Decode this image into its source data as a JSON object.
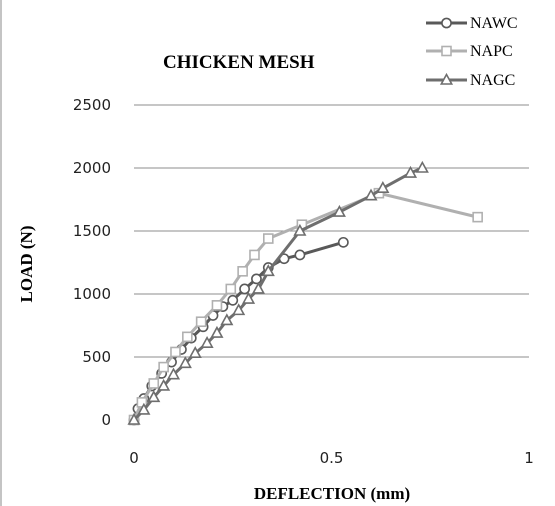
{
  "chart_data": {
    "type": "line",
    "title": "CHICKEN MESH",
    "xlabel": "DEFLECTION (mm)",
    "ylabel": "LOAD (N)",
    "xlim": [
      0,
      1
    ],
    "ylim": [
      0,
      2500
    ],
    "xticks": [
      0,
      0.5,
      1
    ],
    "yticks": [
      0,
      500,
      1000,
      1500,
      2000,
      2500
    ],
    "xtick_labels": [
      "0",
      "0.5",
      "1"
    ],
    "ytick_labels": [
      "0",
      "500",
      "1000",
      "1500",
      "2000",
      "2500"
    ],
    "grid": "horizontal",
    "legend": "top-right",
    "series": [
      {
        "name": "NAWC",
        "marker": "circle",
        "color": "#595959",
        "points": [
          [
            0,
            0
          ],
          [
            0.01,
            90
          ],
          [
            0.025,
            170
          ],
          [
            0.045,
            270
          ],
          [
            0.07,
            370
          ],
          [
            0.095,
            460
          ],
          [
            0.12,
            560
          ],
          [
            0.145,
            650
          ],
          [
            0.175,
            740
          ],
          [
            0.2,
            830
          ],
          [
            0.225,
            900
          ],
          [
            0.25,
            950
          ],
          [
            0.28,
            1040
          ],
          [
            0.31,
            1120
          ],
          [
            0.34,
            1210
          ],
          [
            0.38,
            1280
          ],
          [
            0.42,
            1310
          ],
          [
            0.53,
            1410
          ]
        ]
      },
      {
        "name": "NAPC",
        "marker": "square",
        "color": "#b0b0b0",
        "points": [
          [
            0,
            0
          ],
          [
            0.02,
            140
          ],
          [
            0.05,
            290
          ],
          [
            0.075,
            420
          ],
          [
            0.105,
            540
          ],
          [
            0.135,
            660
          ],
          [
            0.17,
            780
          ],
          [
            0.21,
            910
          ],
          [
            0.245,
            1040
          ],
          [
            0.275,
            1180
          ],
          [
            0.305,
            1310
          ],
          [
            0.34,
            1440
          ],
          [
            0.425,
            1550
          ],
          [
            0.62,
            1800
          ],
          [
            0.87,
            1610
          ]
        ]
      },
      {
        "name": "NAGC",
        "marker": "triangle",
        "color": "#6e6e6e",
        "points": [
          [
            0,
            0
          ],
          [
            0.025,
            80
          ],
          [
            0.05,
            180
          ],
          [
            0.075,
            270
          ],
          [
            0.1,
            360
          ],
          [
            0.13,
            450
          ],
          [
            0.155,
            530
          ],
          [
            0.185,
            610
          ],
          [
            0.21,
            690
          ],
          [
            0.235,
            790
          ],
          [
            0.265,
            870
          ],
          [
            0.29,
            960
          ],
          [
            0.315,
            1040
          ],
          [
            0.34,
            1180
          ],
          [
            0.42,
            1500
          ],
          [
            0.52,
            1650
          ],
          [
            0.6,
            1780
          ],
          [
            0.63,
            1840
          ],
          [
            0.7,
            1960
          ],
          [
            0.73,
            2000
          ]
        ]
      }
    ]
  }
}
